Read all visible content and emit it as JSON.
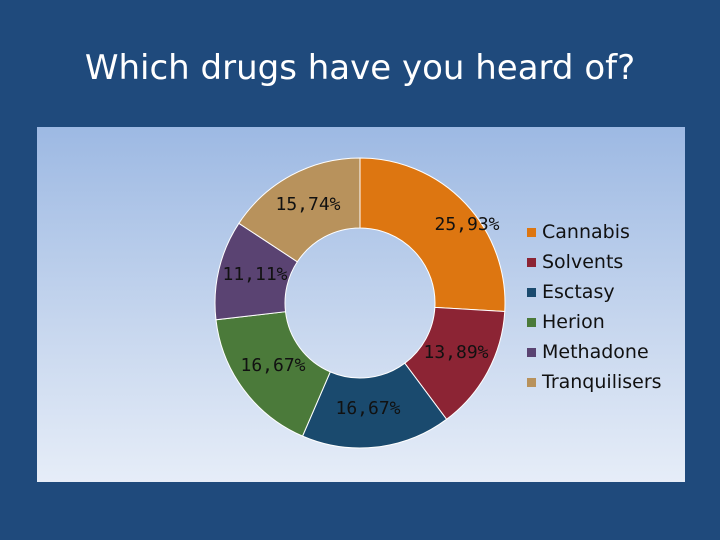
{
  "title": "Which drugs have you heard of?",
  "chart_data": {
    "type": "pie",
    "style": "donut",
    "title": "",
    "slices": [
      {
        "label": "Cannabis",
        "value": 25.93,
        "display": "25,93%",
        "color": "#dd7611"
      },
      {
        "label": "Solvents",
        "value": 13.89,
        "display": "13,89%",
        "color": "#8c2434"
      },
      {
        "label": "Esctasy",
        "value": 16.67,
        "display": "16,67%",
        "color": "#1a4a6e"
      },
      {
        "label": "Herion",
        "value": 16.67,
        "display": "16,67%",
        "color": "#4b7a3a"
      },
      {
        "label": "Methadone",
        "value": 11.11,
        "display": "11,11%",
        "color": "#5a4372"
      },
      {
        "label": "Tranquilisers",
        "value": 15.74,
        "display": "15,74%",
        "color": "#b8925c"
      }
    ],
    "legend_position": "right"
  }
}
